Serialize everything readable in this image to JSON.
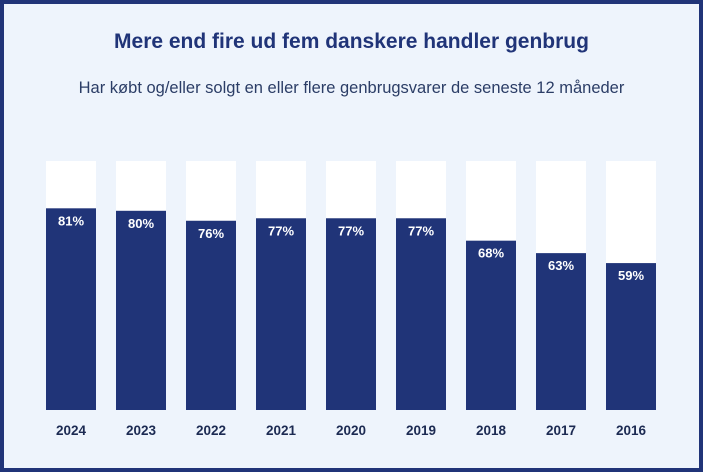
{
  "title": "Mere end fire ud fem danskere handler genbrug",
  "subtitle": "Har købt og/eller solgt en eller flere genbrugsvarer de seneste 12 måneder",
  "colors": {
    "bar": "#203478",
    "track": "#ffffff",
    "background": "#eef4fc",
    "border": "#203478"
  },
  "chart_data": {
    "type": "bar",
    "title": "Mere end fire ud fem danskere handler genbrug",
    "subtitle": "Har købt og/eller solgt en eller flere genbrugsvarer de seneste 12 måneder",
    "categories": [
      "2024",
      "2023",
      "2022",
      "2021",
      "2020",
      "2019",
      "2018",
      "2017",
      "2016"
    ],
    "values": [
      81,
      80,
      76,
      77,
      77,
      77,
      68,
      63,
      59
    ],
    "value_labels": [
      "81%",
      "80%",
      "76%",
      "77%",
      "77%",
      "77%",
      "68%",
      "63%",
      "59%"
    ],
    "ylim": [
      0,
      100
    ],
    "grid": false,
    "legend": "none"
  }
}
